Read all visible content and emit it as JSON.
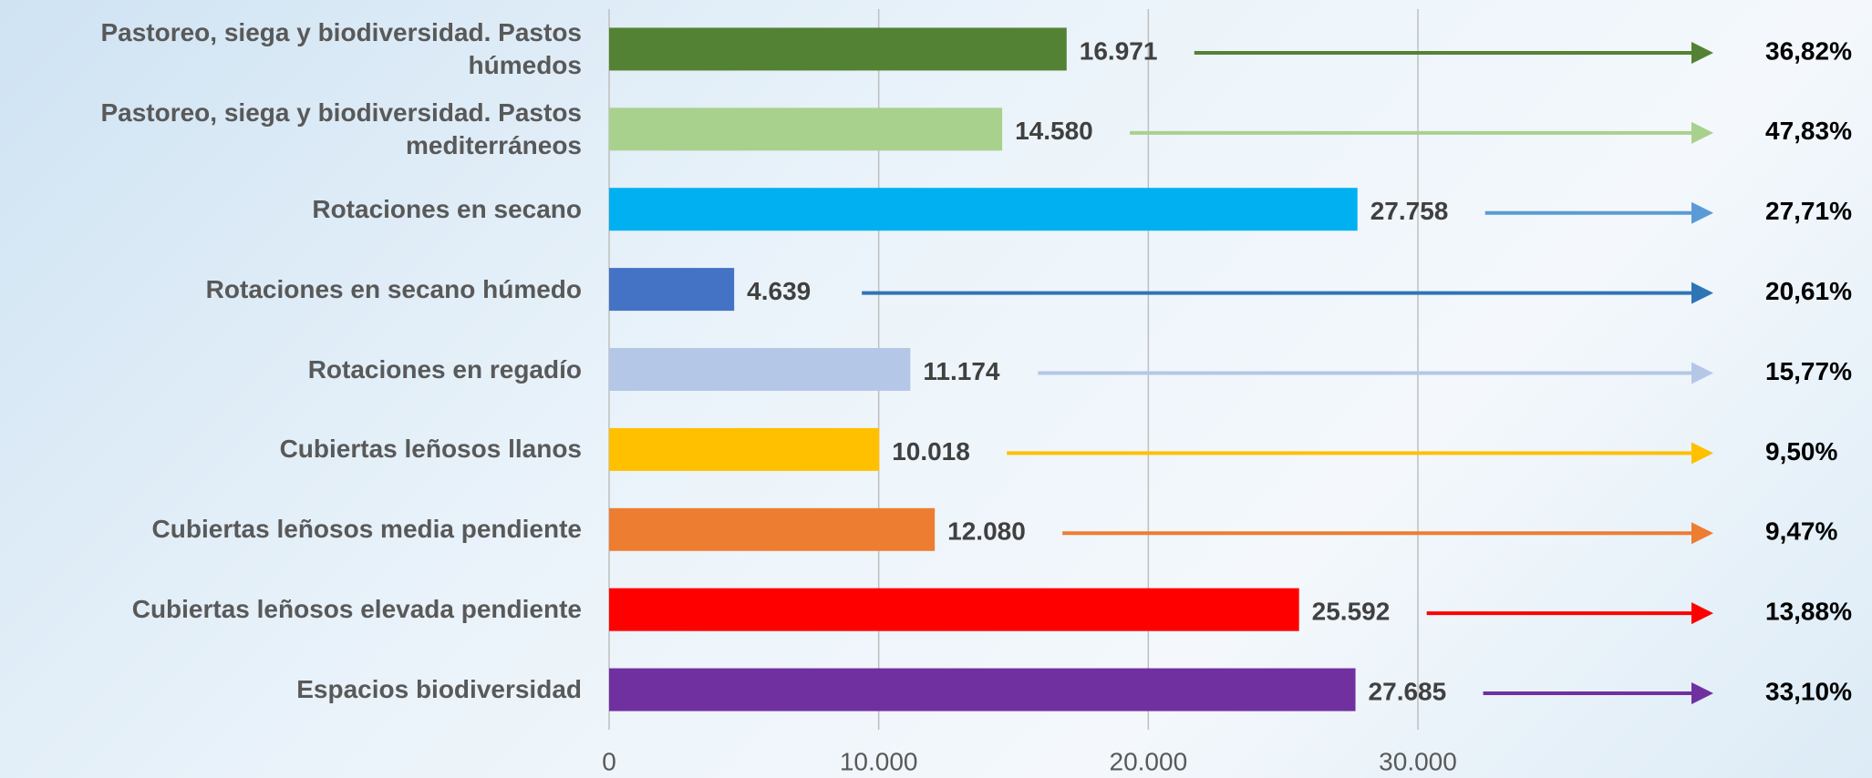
{
  "chart_data": {
    "type": "bar",
    "orientation": "horizontal",
    "categories": [
      "Pastoreo, siega y biodiversidad. Pastos húmedos",
      "Pastoreo, siega y biodiversidad. Pastos mediterráneos",
      "Rotaciones en secano",
      "Rotaciones en secano húmedo",
      "Rotaciones en regadío",
      "Cubiertas leñosos llanos",
      "Cubiertas leñosos media pendiente",
      "Cubiertas leñosos elevada pendiente",
      "Espacios biodiversidad"
    ],
    "values": [
      16971,
      14580,
      27758,
      4639,
      11174,
      10018,
      12080,
      25592,
      27685
    ],
    "value_labels": [
      "16.971",
      "14.580",
      "27.758",
      "4.639",
      "11.174",
      "10.018",
      "12.080",
      "25.592",
      "27.685"
    ],
    "colors": [
      "#548235",
      "#a9d18e",
      "#00b0f0",
      "#4472c4",
      "#b4c7e7",
      "#ffc000",
      "#ed7d31",
      "#ff0000",
      "#7030a0"
    ],
    "xlim": [
      0,
      30000
    ],
    "xticks": [
      0,
      {
        "value": 10000,
        "label": "10.000"
      },
      {
        "value": 20000,
        "label": "20.000"
      },
      {
        "value": 30000,
        "label": "30.000"
      }
    ],
    "grid": true,
    "shares": {
      "values": [
        36.82,
        47.83,
        27.71,
        20.61,
        15.77,
        9.5,
        9.47,
        13.88,
        33.1
      ],
      "value_labels": [
        "36,82%",
        "47,83%",
        "27,71%",
        "20,61%",
        "15,77%",
        "9,50%",
        "9,47%",
        "13,88%",
        "33,10%"
      ],
      "colors": [
        "#548235",
        "#a9d18e",
        "#5b9bd5",
        "#2e75b6",
        "#b4c7e7",
        "#ffc000",
        "#ed7d31",
        "#ff0000",
        "#7030a0"
      ]
    }
  }
}
